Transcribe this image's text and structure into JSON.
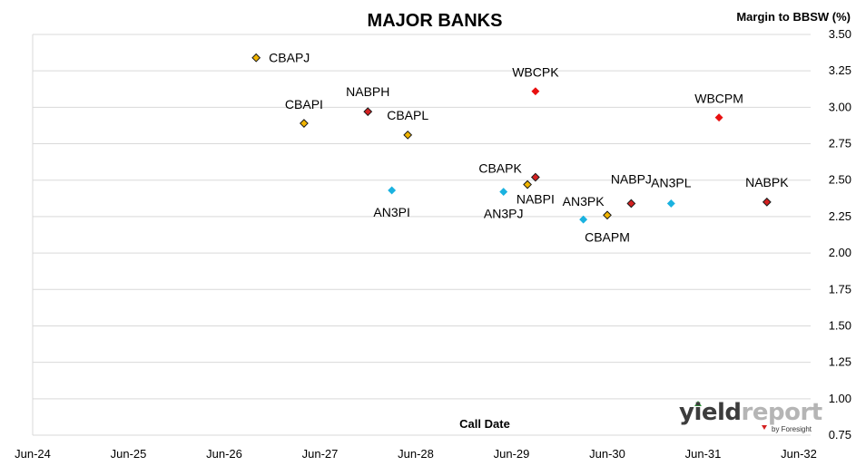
{
  "chart_data": {
    "type": "scatter",
    "title": "MAJOR BANKS",
    "ylabel": "Margin to BBSW (%)",
    "xlabel": "Call Date",
    "ylim": [
      0.75,
      3.5
    ],
    "y_ticks": [
      "0.75",
      "1.00",
      "1.25",
      "1.50",
      "1.75",
      "2.00",
      "2.25",
      "2.50",
      "2.75",
      "3.00",
      "3.25",
      "3.50"
    ],
    "xlim": [
      "2024-06",
      "2032-06"
    ],
    "x_ticks": [
      "Jun-24",
      "Jun-25",
      "Jun-26",
      "Jun-27",
      "Jun-28",
      "Jun-29",
      "Jun-30",
      "Jun-31",
      "Jun-32"
    ],
    "grid": "horizontal",
    "points": [
      {
        "name": "CBAPJ",
        "x": "2026-10",
        "y": 3.34,
        "color": "#f0b400"
      },
      {
        "name": "CBAPI",
        "x": "2027-04",
        "y": 2.89,
        "color": "#f0b400"
      },
      {
        "name": "NABPH",
        "x": "2027-12",
        "y": 2.97,
        "color": "#d42020"
      },
      {
        "name": "CBAPL",
        "x": "2028-05",
        "y": 2.81,
        "color": "#f0b400"
      },
      {
        "name": "AN3PI",
        "x": "2028-03",
        "y": 2.43,
        "color": "#1ab2e0"
      },
      {
        "name": "WBCPK",
        "x": "2029-09",
        "y": 3.11,
        "color": "#e81010"
      },
      {
        "name": "CBAPK",
        "x": "2029-08",
        "y": 2.47,
        "color": "#f0b400"
      },
      {
        "name": "AN3PJ",
        "x": "2029-05",
        "y": 2.42,
        "color": "#1ab2e0"
      },
      {
        "name": "NABPI",
        "x": "2029-09",
        "y": 2.52,
        "color": "#d42020"
      },
      {
        "name": "AN3PK",
        "x": "2030-03",
        "y": 2.23,
        "color": "#1ab2e0"
      },
      {
        "name": "CBAPM",
        "x": "2030-06",
        "y": 2.26,
        "color": "#f0b400"
      },
      {
        "name": "NABPJ",
        "x": "2030-09",
        "y": 2.34,
        "color": "#d42020"
      },
      {
        "name": "AN3PL",
        "x": "2031-02",
        "y": 2.34,
        "color": "#1ab2e0"
      },
      {
        "name": "WBCPM",
        "x": "2031-08",
        "y": 2.93,
        "color": "#e81010"
      },
      {
        "name": "NABPK",
        "x": "2032-02",
        "y": 2.35,
        "color": "#d42020"
      }
    ]
  },
  "logo": {
    "main_dark": "yield",
    "main_light": "report",
    "sub": "by Foresight"
  }
}
